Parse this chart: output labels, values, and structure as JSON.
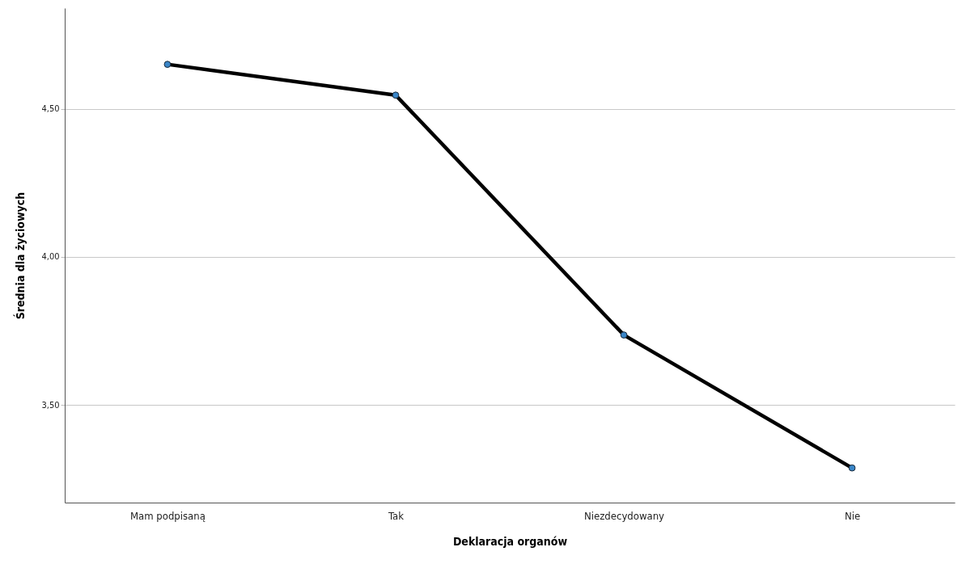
{
  "chart_data": {
    "type": "line",
    "xlabel": "Deklaracja organów",
    "ylabel": "Średnia dla życiowych",
    "categories": [
      "Mam podpisaną",
      "Tak",
      "Niezdecydowany",
      "Nie"
    ],
    "series": [
      {
        "color": "#000000",
        "values": [
          4.65,
          4.546,
          3.736,
          3.287
        ]
      }
    ],
    "ylim": [
      3.17,
      4.84
    ],
    "yticks": [
      {
        "value": 3.5,
        "label": "3,50"
      },
      {
        "value": 4.0,
        "label": "4,00"
      },
      {
        "value": 4.5,
        "label": "4,50"
      }
    ],
    "grid": "y",
    "marker": "circle",
    "line_style": "solid"
  }
}
